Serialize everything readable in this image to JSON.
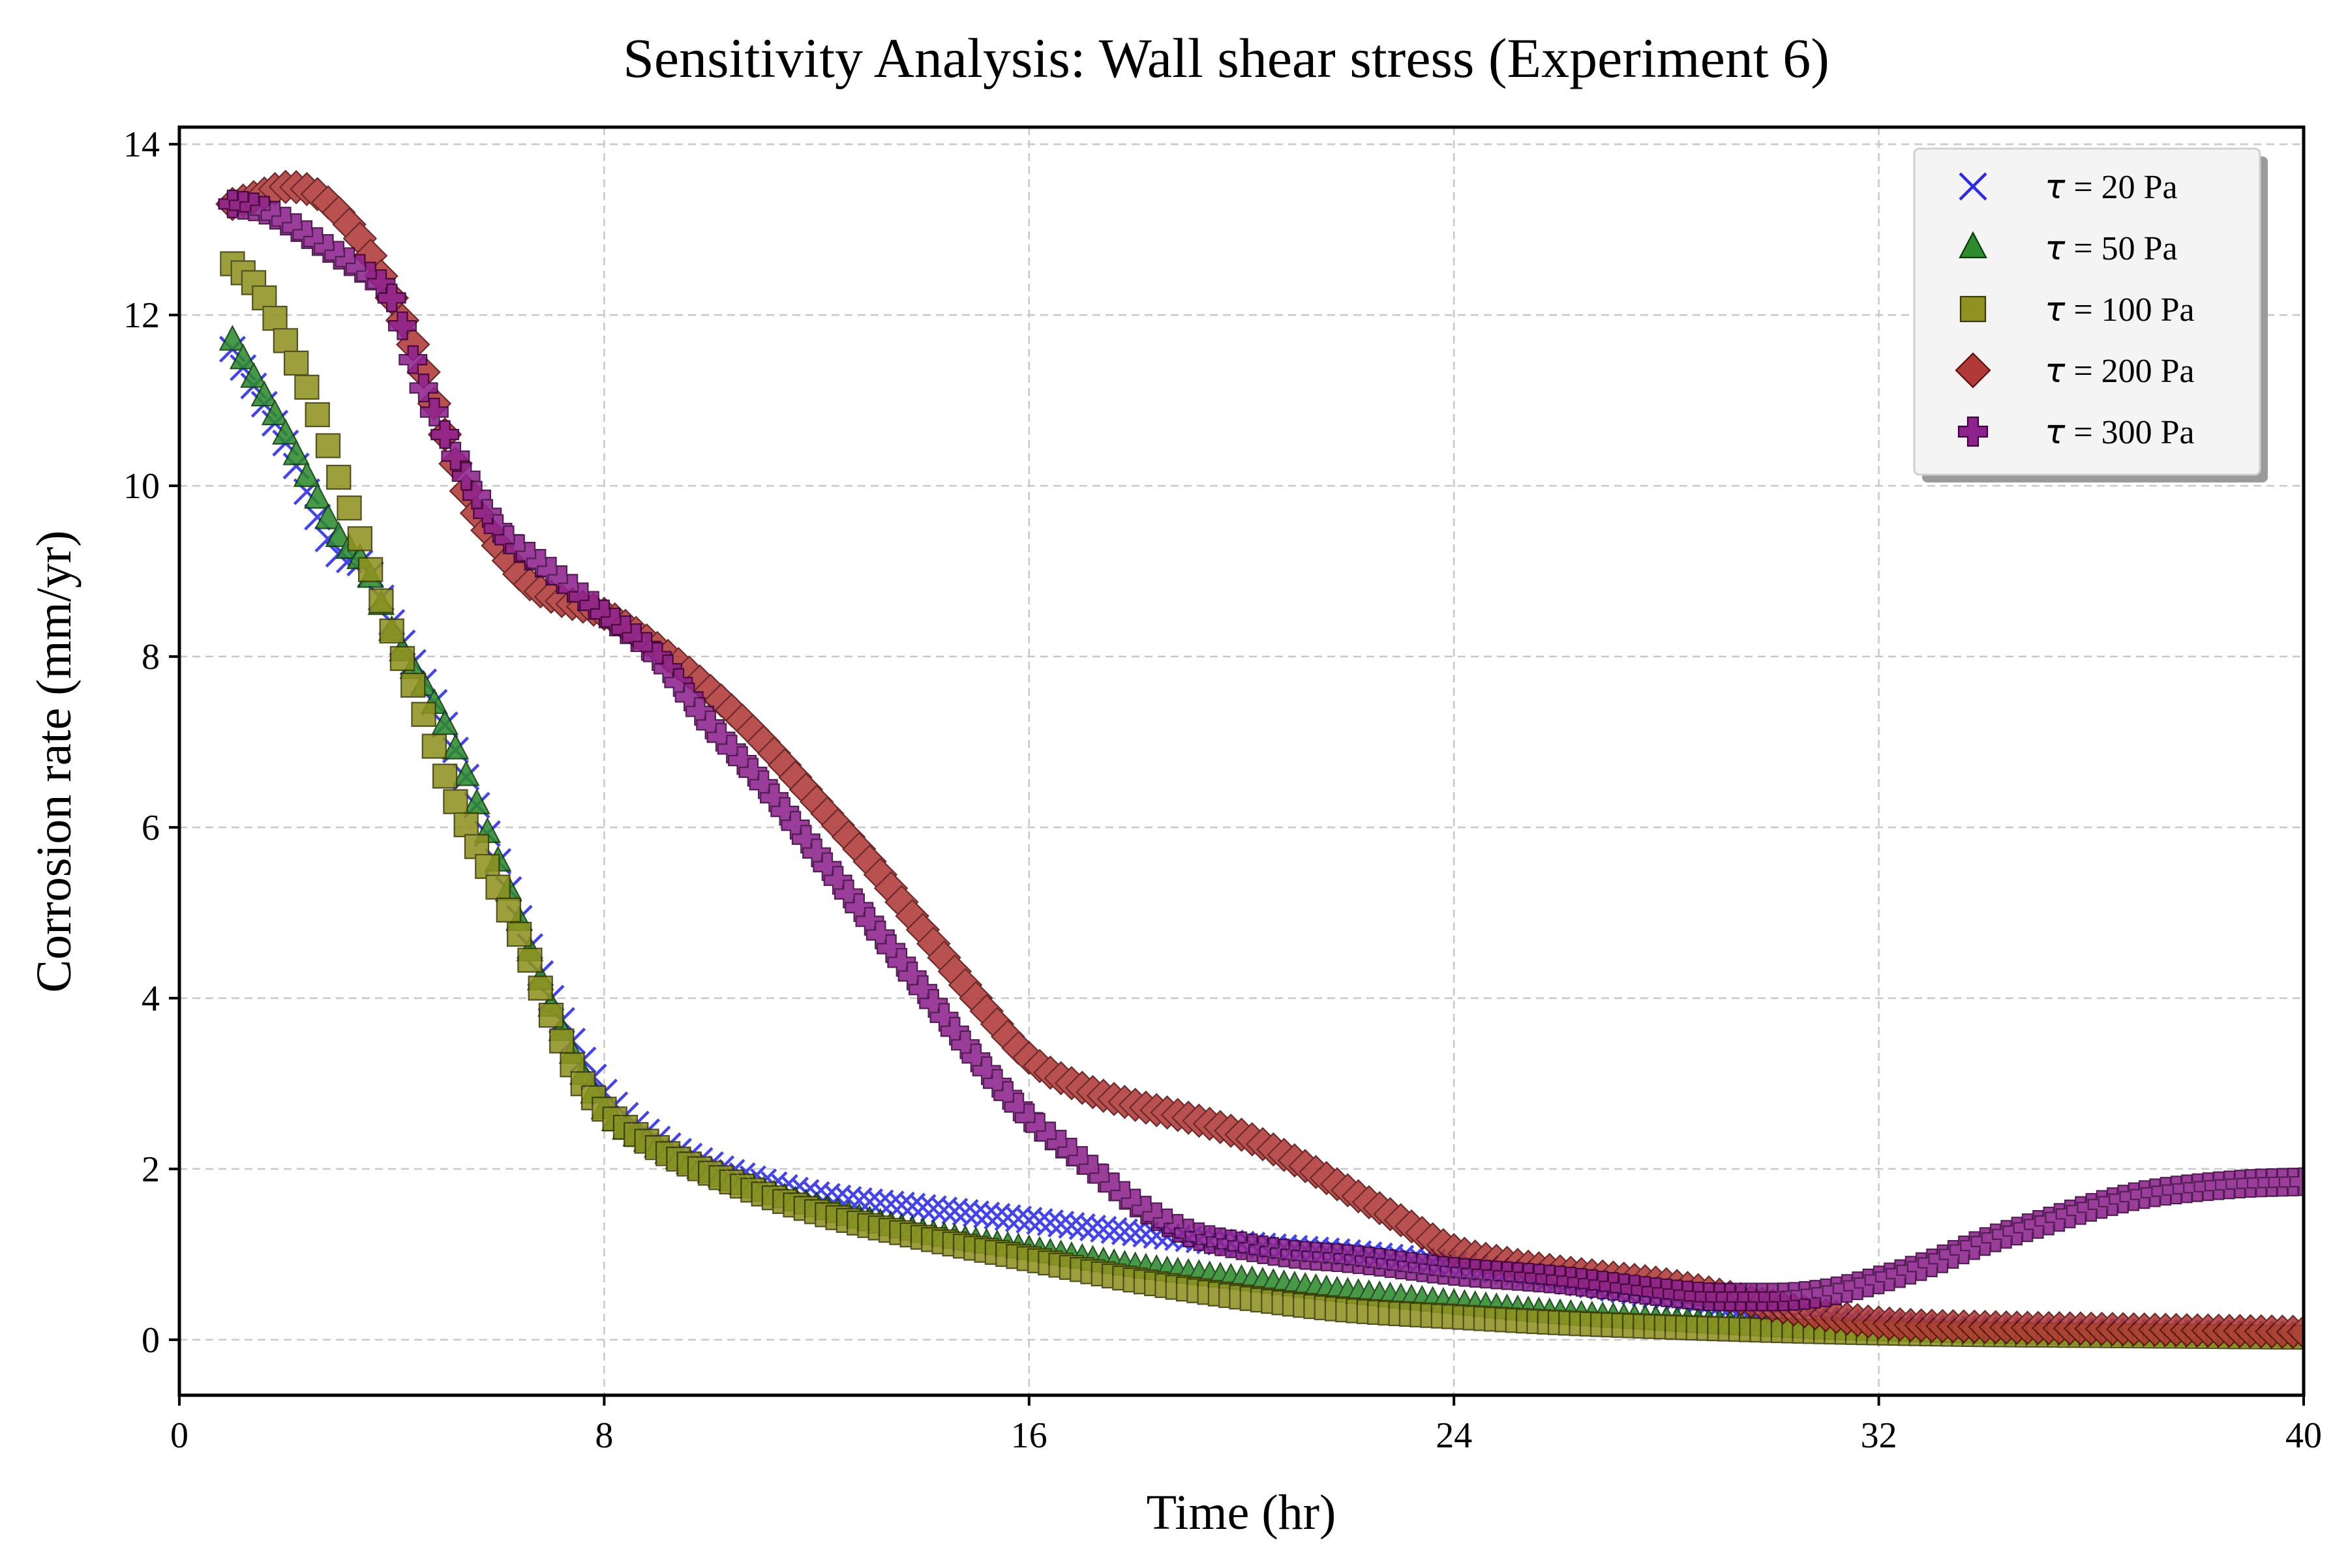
{
  "chart_data": {
    "type": "scatter",
    "title": "Sensitivity Analysis: Wall shear stress (Experiment 6)",
    "xlabel": "Time (hr)",
    "ylabel": "Corrosion rate (mm/yr)",
    "xlim": [
      0,
      40
    ],
    "ylim": [
      -0.65,
      14.2
    ],
    "xticks": [
      0,
      8,
      16,
      24,
      32,
      40
    ],
    "yticks": [
      0,
      2,
      4,
      6,
      8,
      10,
      12,
      14
    ],
    "grid": true,
    "legend_position": "top-right",
    "x_sampling": {
      "start": 1,
      "end": 40,
      "step": 0.2
    },
    "series": [
      {
        "name": "τ = 20 Pa",
        "tau_symbol": "τ",
        "label_rest": " = 20 Pa",
        "marker": "x",
        "color": "#2b2be6",
        "edge": "#2b2be6",
        "points": [
          [
            1,
            11.6
          ],
          [
            2,
            10.5
          ],
          [
            3,
            9.2
          ],
          [
            3.5,
            9.05
          ],
          [
            4,
            8.4
          ],
          [
            5,
            7.2
          ],
          [
            6,
            5.6
          ],
          [
            7,
            4.0
          ],
          [
            8,
            2.9
          ],
          [
            9,
            2.35
          ],
          [
            10,
            2.05
          ],
          [
            11,
            1.85
          ],
          [
            12,
            1.7
          ],
          [
            14,
            1.55
          ],
          [
            16,
            1.4
          ],
          [
            18,
            1.25
          ],
          [
            20,
            1.12
          ],
          [
            22,
            1.02
          ],
          [
            24,
            0.88
          ],
          [
            26,
            0.7
          ],
          [
            28,
            0.5
          ],
          [
            30,
            0.3
          ],
          [
            32,
            0.18
          ],
          [
            34,
            0.12
          ],
          [
            36,
            0.1
          ],
          [
            38,
            0.08
          ],
          [
            40,
            0.06
          ]
        ]
      },
      {
        "name": "τ = 50 Pa",
        "tau_symbol": "τ",
        "label_rest": " = 50 Pa",
        "marker": "triangle",
        "color": "#2e8b2e",
        "edge": "#0a3a0a",
        "points": [
          [
            1,
            11.7
          ],
          [
            2,
            10.6
          ],
          [
            3,
            9.4
          ],
          [
            3.5,
            9.05
          ],
          [
            4,
            8.3
          ],
          [
            5,
            7.2
          ],
          [
            6,
            5.6
          ],
          [
            7,
            3.9
          ],
          [
            8,
            2.7
          ],
          [
            9,
            2.25
          ],
          [
            10,
            1.95
          ],
          [
            12,
            1.55
          ],
          [
            14,
            1.25
          ],
          [
            16,
            1.05
          ],
          [
            18,
            0.85
          ],
          [
            20,
            0.7
          ],
          [
            22,
            0.55
          ],
          [
            24,
            0.42
          ],
          [
            26,
            0.3
          ],
          [
            28,
            0.22
          ],
          [
            30,
            0.15
          ],
          [
            32,
            0.1
          ],
          [
            34,
            0.07
          ],
          [
            36,
            0.05
          ],
          [
            38,
            0.04
          ],
          [
            40,
            0.03
          ]
        ]
      },
      {
        "name": "τ = 100 Pa",
        "tau_symbol": "τ",
        "label_rest": " = 100 Pa",
        "marker": "square",
        "color": "#8f9220",
        "edge": "#3a3a05",
        "points": [
          [
            1,
            12.6
          ],
          [
            1.5,
            12.3
          ],
          [
            2,
            11.7
          ],
          [
            2.5,
            11.0
          ],
          [
            3,
            10.1
          ],
          [
            3.5,
            9.2
          ],
          [
            4,
            8.3
          ],
          [
            4.5,
            7.5
          ],
          [
            5,
            6.6
          ],
          [
            5.5,
            5.9
          ],
          [
            6,
            5.3
          ],
          [
            6.5,
            4.6
          ],
          [
            7,
            3.8
          ],
          [
            7.5,
            3.1
          ],
          [
            8,
            2.7
          ],
          [
            9,
            2.25
          ],
          [
            10,
            1.95
          ],
          [
            12,
            1.5
          ],
          [
            14,
            1.2
          ],
          [
            16,
            0.95
          ],
          [
            18,
            0.7
          ],
          [
            20,
            0.5
          ],
          [
            22,
            0.35
          ],
          [
            24,
            0.27
          ],
          [
            26,
            0.2
          ],
          [
            28,
            0.15
          ],
          [
            30,
            0.11
          ],
          [
            32,
            0.08
          ],
          [
            34,
            0.06
          ],
          [
            36,
            0.05
          ],
          [
            38,
            0.04
          ],
          [
            40,
            0.03
          ]
        ]
      },
      {
        "name": "τ = 200 Pa",
        "tau_symbol": "τ",
        "label_rest": " = 200 Pa",
        "marker": "diamond",
        "color": "#b03a38",
        "edge": "#5a0d0d",
        "points": [
          [
            1,
            13.3
          ],
          [
            1.5,
            13.4
          ],
          [
            2,
            13.5
          ],
          [
            2.5,
            13.45
          ],
          [
            3,
            13.2
          ],
          [
            3.5,
            12.8
          ],
          [
            4,
            12.2
          ],
          [
            4.5,
            11.5
          ],
          [
            5,
            10.6
          ],
          [
            5.5,
            9.8
          ],
          [
            6,
            9.3
          ],
          [
            6.5,
            8.9
          ],
          [
            7,
            8.7
          ],
          [
            8,
            8.5
          ],
          [
            9,
            8.1
          ],
          [
            10,
            7.6
          ],
          [
            11,
            7.0
          ],
          [
            12,
            6.3
          ],
          [
            13,
            5.6
          ],
          [
            14,
            4.8
          ],
          [
            15,
            4.0
          ],
          [
            16,
            3.3
          ],
          [
            17,
            2.95
          ],
          [
            18,
            2.75
          ],
          [
            19,
            2.6
          ],
          [
            20,
            2.4
          ],
          [
            21,
            2.1
          ],
          [
            22,
            1.75
          ],
          [
            23,
            1.4
          ],
          [
            24,
            1.05
          ],
          [
            25,
            0.9
          ],
          [
            26,
            0.8
          ],
          [
            28,
            0.65
          ],
          [
            30,
            0.4
          ],
          [
            32,
            0.2
          ],
          [
            34,
            0.15
          ],
          [
            36,
            0.13
          ],
          [
            38,
            0.11
          ],
          [
            40,
            0.09
          ]
        ]
      },
      {
        "name": "τ = 300 Pa",
        "tau_symbol": "τ",
        "label_rest": " = 300 Pa",
        "marker": "plus",
        "color": "#8e238e",
        "edge": "#3c003c",
        "points": [
          [
            1,
            13.3
          ],
          [
            1.5,
            13.25
          ],
          [
            2,
            13.1
          ],
          [
            2.5,
            12.9
          ],
          [
            3,
            12.7
          ],
          [
            3.5,
            12.5
          ],
          [
            4,
            12.2
          ],
          [
            4.5,
            11.3
          ],
          [
            5,
            10.6
          ],
          [
            5.5,
            10.0
          ],
          [
            6,
            9.5
          ],
          [
            7,
            9.0
          ],
          [
            8,
            8.5
          ],
          [
            9,
            8.0
          ],
          [
            10,
            7.2
          ],
          [
            11,
            6.5
          ],
          [
            12,
            5.7
          ],
          [
            13,
            4.9
          ],
          [
            14,
            4.1
          ],
          [
            15,
            3.3
          ],
          [
            16,
            2.6
          ],
          [
            17,
            2.1
          ],
          [
            18,
            1.6
          ],
          [
            19,
            1.25
          ],
          [
            20,
            1.1
          ],
          [
            21,
            1.0
          ],
          [
            22,
            0.95
          ],
          [
            24,
            0.8
          ],
          [
            26,
            0.7
          ],
          [
            28,
            0.55
          ],
          [
            29,
            0.5
          ],
          [
            30,
            0.5
          ],
          [
            31,
            0.55
          ],
          [
            32,
            0.7
          ],
          [
            33,
            0.9
          ],
          [
            34,
            1.15
          ],
          [
            35,
            1.35
          ],
          [
            36,
            1.55
          ],
          [
            37,
            1.7
          ],
          [
            38,
            1.78
          ],
          [
            39,
            1.83
          ],
          [
            40,
            1.85
          ]
        ]
      }
    ]
  }
}
